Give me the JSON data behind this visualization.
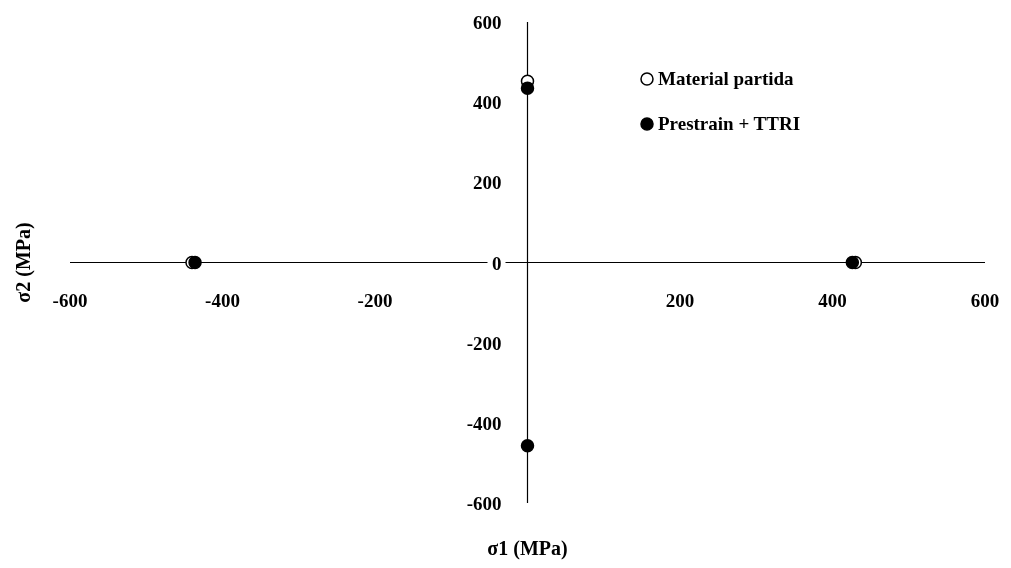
{
  "chart_data": {
    "type": "scatter",
    "xlabel": "σ1 (MPa)",
    "ylabel": "σ2 (MPa)",
    "xlim": [
      -600,
      600
    ],
    "ylim": [
      -600,
      600
    ],
    "xticks": [
      -600,
      -400,
      -200,
      200,
      400,
      600
    ],
    "yticks": [
      -600,
      -400,
      -200,
      0,
      200,
      400,
      600
    ],
    "legend": "top right",
    "grid": false,
    "series": [
      {
        "name": "Material partida",
        "color": "#ffffff",
        "marker": "circle",
        "x": [
          0,
          -440,
          430
        ],
        "values": [
          452,
          0,
          0
        ]
      },
      {
        "name": "Prestrain + TTRI",
        "color": "#000000",
        "marker": "circle",
        "x": [
          0,
          -436,
          426,
          0
        ],
        "values": [
          435,
          0,
          0,
          -457
        ]
      }
    ]
  }
}
